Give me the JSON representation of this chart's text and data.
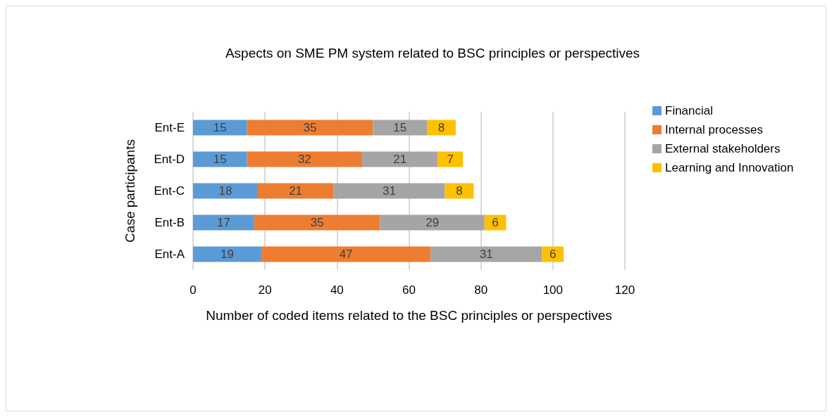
{
  "chart_data": {
    "type": "bar",
    "orientation": "horizontal",
    "stacked": true,
    "title": "Aspects on SME PM system related to BSC principles or perspectives",
    "xlabel": "Number of coded items related to the BSC principles or perspectives",
    "ylabel": "Case participants",
    "categories": [
      "Ent-E",
      "Ent-D",
      "Ent-C",
      "Ent-B",
      "Ent-A"
    ],
    "series": [
      {
        "name": "Financial",
        "color": "#5b9bd5",
        "values": [
          15,
          15,
          18,
          17,
          19
        ]
      },
      {
        "name": "Internal processes",
        "color": "#ed7d31",
        "values": [
          35,
          32,
          21,
          35,
          47
        ]
      },
      {
        "name": "External stakeholders",
        "color": "#a5a5a5",
        "values": [
          15,
          21,
          31,
          29,
          31
        ]
      },
      {
        "name": "Learning and Innovation",
        "color": "#ffc000",
        "values": [
          8,
          7,
          8,
          6,
          6
        ]
      }
    ],
    "xlim": [
      0,
      120
    ],
    "xticks": [
      0,
      20,
      40,
      60,
      80,
      100,
      120
    ],
    "grid": "x",
    "legend": "right",
    "data_labels": true
  }
}
